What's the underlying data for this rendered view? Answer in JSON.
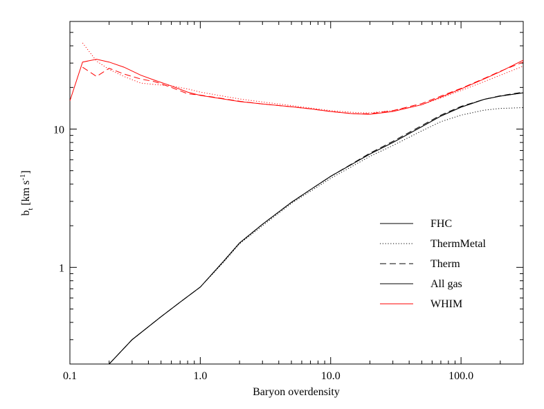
{
  "chart_data": {
    "type": "line",
    "title": "",
    "xlabel": "Baryon overdensity",
    "ylabel_main": "b",
    "ylabel_sub": "t",
    "ylabel_rest": " [km s",
    "ylabel_sup": "-1",
    "ylabel_end": "]",
    "xscale": "log",
    "yscale": "log",
    "xlim": [
      0.1,
      300
    ],
    "ylim": [
      0.2,
      60
    ],
    "xticks": [
      {
        "value": 0.1,
        "label": "0.1"
      },
      {
        "value": 1,
        "label": "1.0"
      },
      {
        "value": 10,
        "label": "10.0"
      },
      {
        "value": 100,
        "label": "100.0"
      }
    ],
    "yticks": [
      {
        "value": 1,
        "label": "1"
      },
      {
        "value": 10,
        "label": "10"
      }
    ],
    "legend_position": "lower-right",
    "colors": {
      "black": "#000000",
      "red": "#ff0000"
    },
    "series": [
      {
        "name": "FHC",
        "color": "#000000",
        "dash": "solid",
        "x": [
          0.2,
          0.3,
          0.5,
          0.7,
          1.0,
          1.5,
          2.0,
          3.0,
          5.0,
          7.0,
          10,
          15,
          20,
          30,
          50,
          70,
          100,
          150,
          200,
          300
        ],
        "y": [
          0.2,
          0.3,
          0.44,
          0.56,
          0.72,
          1.1,
          1.5,
          2.05,
          2.95,
          3.65,
          4.55,
          5.65,
          6.6,
          8.0,
          10.4,
          12.4,
          14.4,
          16.4,
          17.3,
          18.3
        ]
      },
      {
        "name": "ThermMetal",
        "color": "#000000",
        "dash": "dotted",
        "x": [
          0.2,
          0.3,
          0.5,
          0.7,
          1.0,
          1.5,
          2.0,
          3.0,
          5.0,
          7.0,
          10,
          15,
          20,
          30,
          50,
          70,
          100,
          150,
          200,
          300
        ],
        "y": [
          0.2,
          0.3,
          0.44,
          0.56,
          0.72,
          1.08,
          1.48,
          2.0,
          2.9,
          3.55,
          4.4,
          5.45,
          6.35,
          7.6,
          9.7,
          11.3,
          12.6,
          13.7,
          14.1,
          14.3
        ]
      },
      {
        "name": "Therm",
        "color": "#000000",
        "dash": "dashed",
        "x": [
          0.2,
          0.3,
          0.5,
          0.7,
          1.0,
          1.5,
          2.0,
          3.0,
          5.0,
          7.0,
          10,
          15,
          20,
          30,
          50,
          70,
          100,
          150,
          200,
          300
        ],
        "y": [
          0.2,
          0.3,
          0.44,
          0.56,
          0.72,
          1.1,
          1.5,
          2.05,
          2.95,
          3.65,
          4.55,
          5.7,
          6.7,
          8.15,
          10.6,
          12.6,
          14.6,
          16.4,
          17.4,
          18.5
        ]
      },
      {
        "name": "All gas",
        "color": "#000000",
        "dash": "solid",
        "x": [
          0.2,
          0.3,
          0.5,
          0.7,
          1.0,
          1.5,
          2.0,
          3.0,
          5.0,
          7.0,
          10,
          15,
          20,
          30,
          50,
          70,
          100,
          150,
          200,
          300
        ],
        "y": [
          0.2,
          0.3,
          0.44,
          0.56,
          0.72,
          1.1,
          1.5,
          2.05,
          2.95,
          3.65,
          4.55,
          5.65,
          6.6,
          8.0,
          10.4,
          12.4,
          14.4,
          16.4,
          17.3,
          18.3
        ]
      },
      {
        "name": "WHIM",
        "color": "#ff0000",
        "dash": "solid",
        "x": [
          0.1,
          0.125,
          0.16,
          0.2,
          0.26,
          0.35,
          0.45,
          0.6,
          0.8,
          1.0,
          1.5,
          2.0,
          3.0,
          5.0,
          7.0,
          10,
          15,
          20,
          30,
          50,
          70,
          100,
          150,
          200,
          300
        ],
        "y": [
          16,
          30.5,
          32,
          30.5,
          28,
          24.5,
          22.5,
          20.5,
          18.5,
          17.5,
          16.5,
          15.8,
          15.2,
          14.5,
          14.0,
          13.4,
          12.9,
          12.8,
          13.4,
          15.0,
          17.0,
          19.5,
          23.0,
          26.0,
          31.5
        ]
      },
      {
        "name": "WHIM ThermMetal",
        "color": "#ff0000",
        "dash": "dotted",
        "x": [
          0.125,
          0.16,
          0.2,
          0.26,
          0.35,
          0.45,
          0.6,
          0.8,
          1.0,
          1.5,
          2.0,
          3.0,
          5.0,
          7.0,
          10,
          15,
          20,
          30,
          50,
          70,
          100,
          150,
          200,
          300
        ],
        "y": [
          42,
          31,
          27,
          24,
          21.5,
          21,
          20.5,
          19.5,
          18.5,
          17.3,
          16.5,
          15.7,
          14.8,
          14.2,
          13.6,
          13.2,
          13.1,
          13.6,
          15.0,
          16.8,
          19.0,
          22.0,
          24.5,
          28.5
        ]
      },
      {
        "name": "WHIM Therm",
        "color": "#ff0000",
        "dash": "dashed",
        "x": [
          0.125,
          0.16,
          0.2,
          0.26,
          0.35,
          0.45,
          0.6,
          0.8,
          1.0,
          1.5,
          2.0,
          3.0,
          5.0,
          7.0,
          10,
          15,
          20,
          30,
          50,
          70,
          100,
          150,
          200,
          300
        ],
        "y": [
          28,
          24,
          27.5,
          25,
          23,
          22,
          20,
          18,
          17.6,
          16.6,
          15.9,
          15.2,
          14.5,
          14.0,
          13.4,
          12.9,
          12.9,
          13.6,
          15.3,
          17.3,
          19.7,
          23.2,
          26.2,
          30.5
        ]
      }
    ],
    "legend": [
      {
        "label": "FHC",
        "color": "#000000",
        "dash": "solid"
      },
      {
        "label": "ThermMetal",
        "color": "#000000",
        "dash": "dotted"
      },
      {
        "label": "Therm",
        "color": "#000000",
        "dash": "dashed"
      },
      {
        "label": "All gas",
        "color": "#000000",
        "dash": "solid"
      },
      {
        "label": "WHIM",
        "color": "#ff0000",
        "dash": "solid"
      }
    ]
  }
}
